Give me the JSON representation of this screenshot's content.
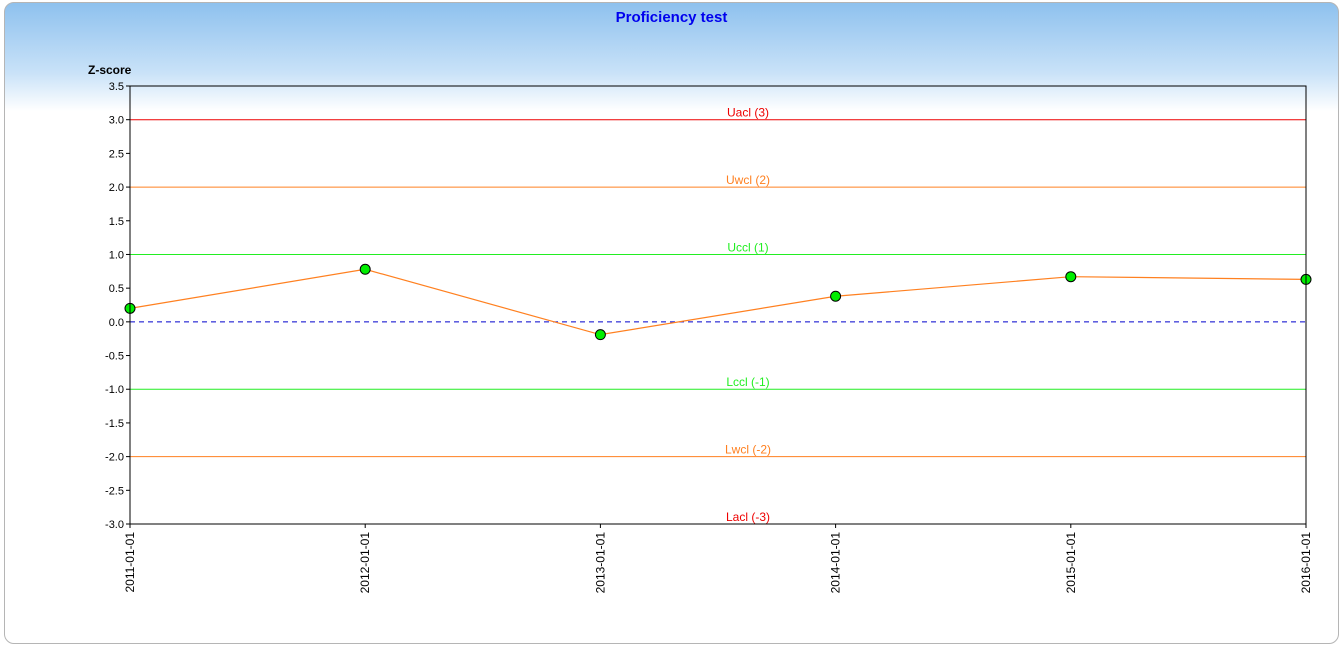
{
  "chart_data": {
    "type": "line",
    "title": "Proficiency test",
    "ylabel": "Z-score",
    "xlabel": "",
    "ylim": [
      -3.0,
      3.5
    ],
    "yticks": [
      "3.5",
      "3.0",
      "2.5",
      "2.0",
      "1.5",
      "1.0",
      "0.5",
      "0.0",
      "-0.5",
      "-1.0",
      "-1.5",
      "-2.0",
      "-2.5",
      "-3.0"
    ],
    "ytick_values": [
      3.5,
      3.0,
      2.5,
      2.0,
      1.5,
      1.0,
      0.5,
      0.0,
      -0.5,
      -1.0,
      -1.5,
      -2.0,
      -2.5,
      -3.0
    ],
    "categories": [
      "2011-01-01",
      "2012-01-01",
      "2013-01-01",
      "2014-01-01",
      "2015-01-01",
      "2016-01-01"
    ],
    "series": [
      {
        "values": [
          0.2,
          0.78,
          -0.19,
          0.38,
          0.67,
          0.63
        ],
        "line_color": "#ff8020",
        "marker_color": "#00ee00"
      }
    ],
    "reference_lines": [
      {
        "label": "Uacl (3)",
        "value": 3,
        "color": "#ee0000",
        "dashed": false
      },
      {
        "label": "Uwcl (2)",
        "value": 2,
        "color": "#ff8020",
        "dashed": false
      },
      {
        "label": "Uccl (1)",
        "value": 1,
        "color": "#22ee22",
        "dashed": false
      },
      {
        "label": "",
        "value": 0,
        "color": "#0000cc",
        "dashed": true
      },
      {
        "label": "Lccl (-1)",
        "value": -1,
        "color": "#22ee22",
        "dashed": false
      },
      {
        "label": "Lwcl (-2)",
        "value": -2,
        "color": "#ff8020",
        "dashed": false
      },
      {
        "label": "Lacl (-3)",
        "value": -3,
        "color": "#ee0000",
        "dashed": false
      }
    ],
    "grid": false,
    "legend": "none"
  }
}
